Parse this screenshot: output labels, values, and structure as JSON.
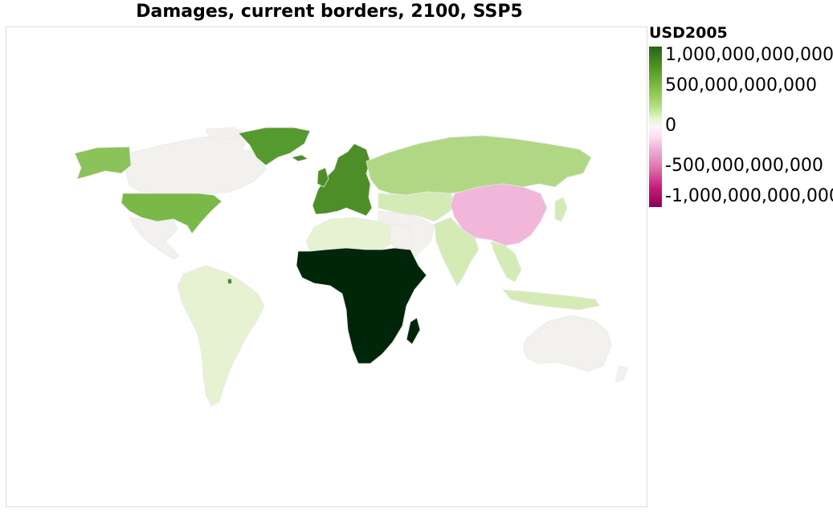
{
  "title": "Damages, current borders, 2100, SSP5",
  "legend": {
    "title": "USD2005",
    "labels": [
      "1,000,000,000,000",
      "500,000,000,000",
      "0",
      "-500,000,000,000",
      "-1,000,000,000,000"
    ]
  },
  "colors": {
    "africa": "#00260a",
    "greenland": "#559a2f",
    "europe": "#4d8e28",
    "usa": "#7ab848",
    "alaska": "#8cc25a",
    "russia": "#b0d884",
    "china": "#f1b6da",
    "pale_green": "#e6f2d2",
    "light_green": "#d5ebb6",
    "neutral": "#f2f1ed"
  }
}
